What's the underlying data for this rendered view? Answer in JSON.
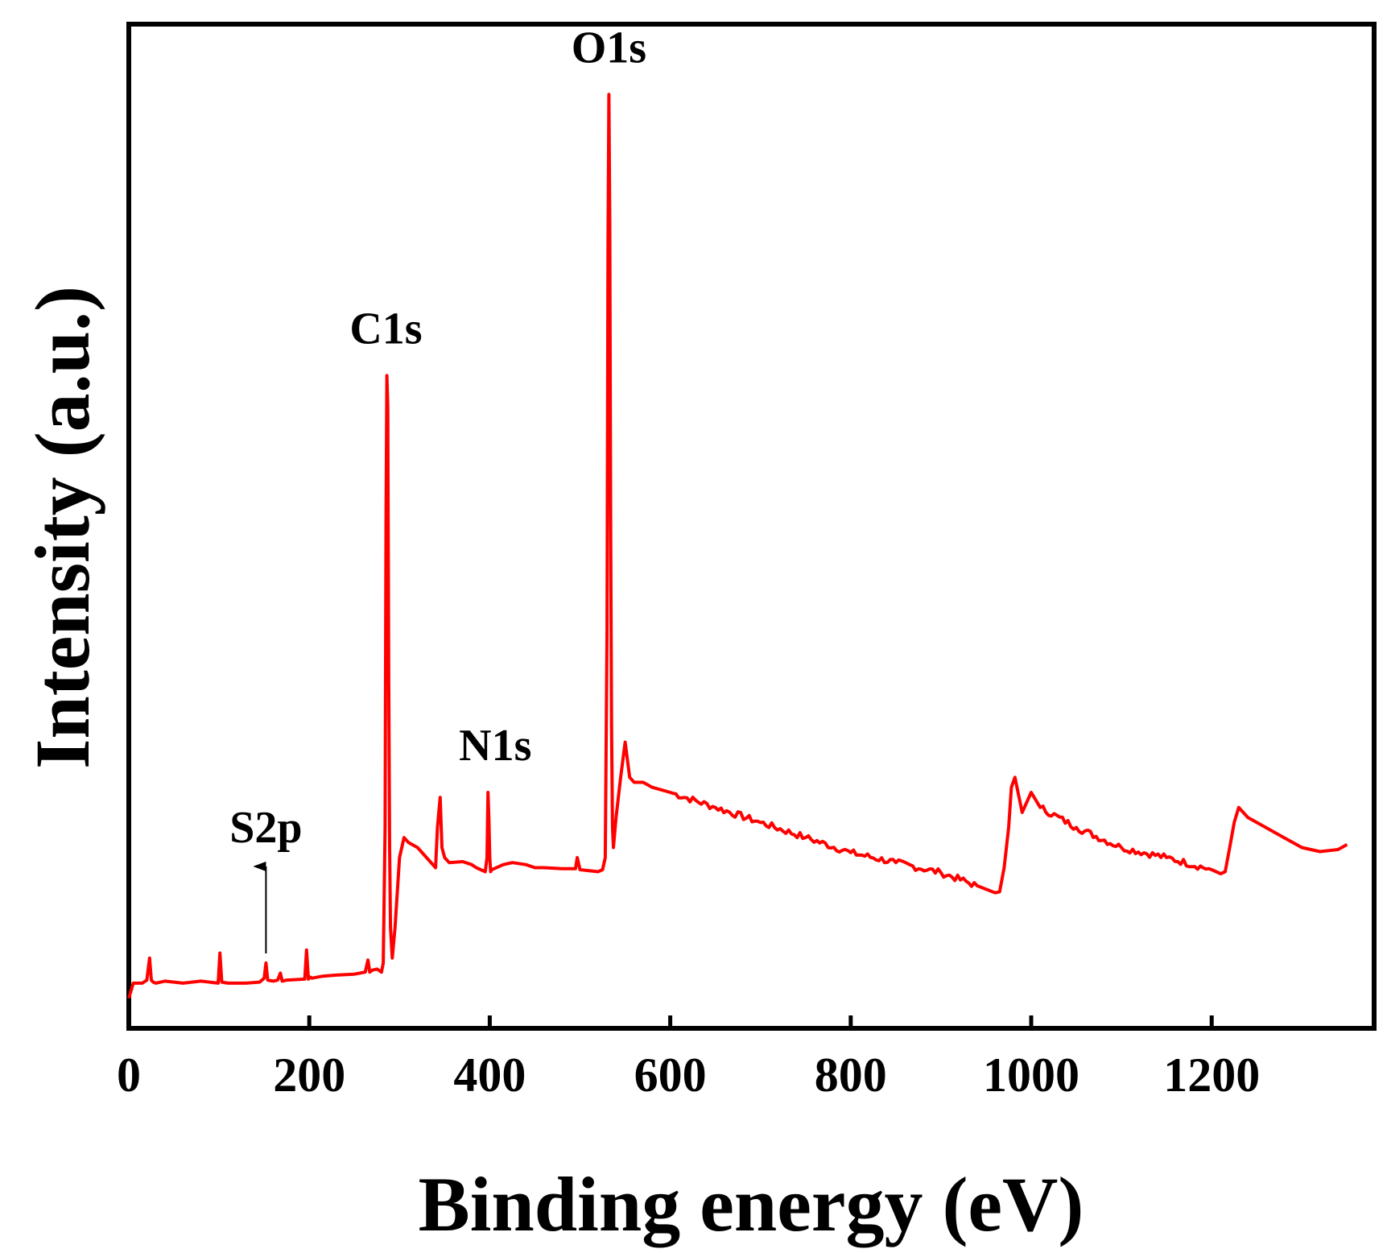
{
  "chart_data": {
    "type": "line",
    "xlabel": "Binding energy (eV)",
    "ylabel": "Intensity (a.u.)",
    "xlim": [
      0,
      1380
    ],
    "ylim": [
      0,
      100
    ],
    "x_ticks": [
      0,
      200,
      400,
      600,
      800,
      1000,
      1200
    ],
    "y_ticks_shown": false,
    "grid": false,
    "line_color": "#ff0000",
    "series": [
      {
        "x": [
          0,
          5,
          15,
          20,
          23,
          25,
          27,
          30,
          40,
          60,
          80,
          99,
          101,
          103,
          110,
          130,
          145,
          150,
          152,
          154,
          160,
          165,
          168,
          170,
          175,
          195,
          197,
          199,
          201,
          203,
          215,
          230,
          250,
          262,
          265,
          267,
          270,
          275,
          280,
          282,
          284,
          285,
          286,
          287,
          288,
          289,
          290,
          292,
          295,
          300,
          305,
          310,
          320,
          330,
          340,
          342,
          345,
          347,
          350,
          355,
          370,
          380,
          385,
          390,
          395,
          397,
          398,
          399,
          400,
          401,
          402,
          405,
          415,
          425,
          440,
          450,
          460,
          480,
          495,
          497,
          500,
          510,
          520,
          525,
          528,
          530,
          531,
          532,
          533,
          534,
          535,
          536,
          537,
          538,
          540,
          545,
          550,
          555,
          560,
          570,
          580,
          600,
          650,
          700,
          750,
          800,
          850,
          900,
          940,
          960,
          965,
          970,
          975,
          978,
          982,
          990,
          1000,
          1010,
          1050,
          1100,
          1150,
          1200,
          1210,
          1215,
          1220,
          1225,
          1230,
          1240,
          1260,
          1280,
          1300,
          1320,
          1340,
          1350
        ],
        "values": [
          3,
          4.5,
          4.5,
          4.8,
          7,
          4.8,
          4.6,
          4.5,
          4.7,
          4.5,
          4.7,
          4.5,
          7.5,
          4.6,
          4.5,
          4.5,
          4.6,
          5,
          6.5,
          4.8,
          4.7,
          4.8,
          5.5,
          4.7,
          4.8,
          4.9,
          7.8,
          4.9,
          5.1,
          5,
          5.2,
          5.3,
          5.4,
          5.6,
          6.8,
          5.6,
          5.8,
          5.9,
          5.6,
          6.5,
          20,
          50,
          65,
          62,
          35,
          18,
          10,
          7,
          10,
          17,
          19,
          18.5,
          18,
          17,
          16,
          20,
          23,
          18,
          17,
          16.5,
          16.6,
          16.3,
          16,
          15.8,
          15.6,
          17,
          23.5,
          21,
          17,
          15.6,
          15.8,
          15.9,
          16.3,
          16.5,
          16.3,
          16,
          16,
          15.9,
          15.9,
          17,
          15.8,
          15.7,
          15.6,
          15.8,
          17,
          40,
          78,
          93,
          80,
          50,
          30,
          20,
          18,
          19,
          21,
          25,
          28.5,
          25,
          24.5,
          24.5,
          24,
          23.5,
          22,
          20.5,
          19,
          17.5,
          16.5,
          15.5,
          14.2,
          13.5,
          13.6,
          16,
          20,
          24,
          25,
          21.5,
          23.5,
          22,
          20,
          18,
          17,
          15.8,
          15.4,
          15.6,
          18,
          20.5,
          22,
          21,
          20,
          19,
          18,
          17.6,
          17.8,
          18.3
        ]
      }
    ],
    "annotations": [
      {
        "text": "S2p",
        "x": 152,
        "arrow": true
      },
      {
        "text": "C1s",
        "x": 285
      },
      {
        "text": "N1s",
        "x": 399
      },
      {
        "text": "O1s",
        "x": 532
      }
    ]
  }
}
